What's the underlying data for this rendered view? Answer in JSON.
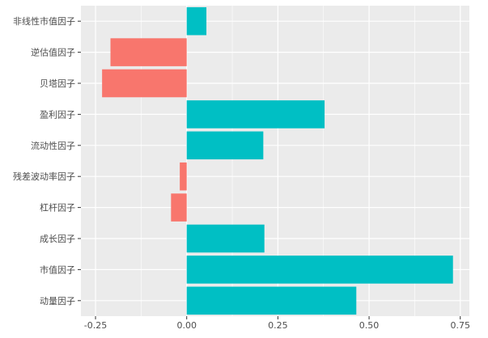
{
  "chart_data": {
    "type": "bar",
    "orientation": "horizontal",
    "categories": [
      "动量因子",
      "市值因子",
      "成长因子",
      "杠杆因子",
      "残差波动率因子",
      "流动性因子",
      "盈利因子",
      "贝塔因子",
      "逆估值因子",
      "非线性市值因子"
    ],
    "values": [
      0.465,
      0.73,
      0.213,
      -0.043,
      -0.019,
      0.21,
      0.378,
      -0.232,
      -0.209,
      0.054
    ],
    "x_ticks": [
      "-0.25",
      "0.00",
      "0.25",
      "0.50",
      "0.75"
    ],
    "xlim": [
      -0.29,
      0.775
    ],
    "grid": true,
    "legend": "none",
    "colors": {
      "positive": "#00BFC4",
      "negative": "#F8766D",
      "panel_background": "#EBEBEB",
      "grid_major": "#FFFFFF"
    }
  }
}
